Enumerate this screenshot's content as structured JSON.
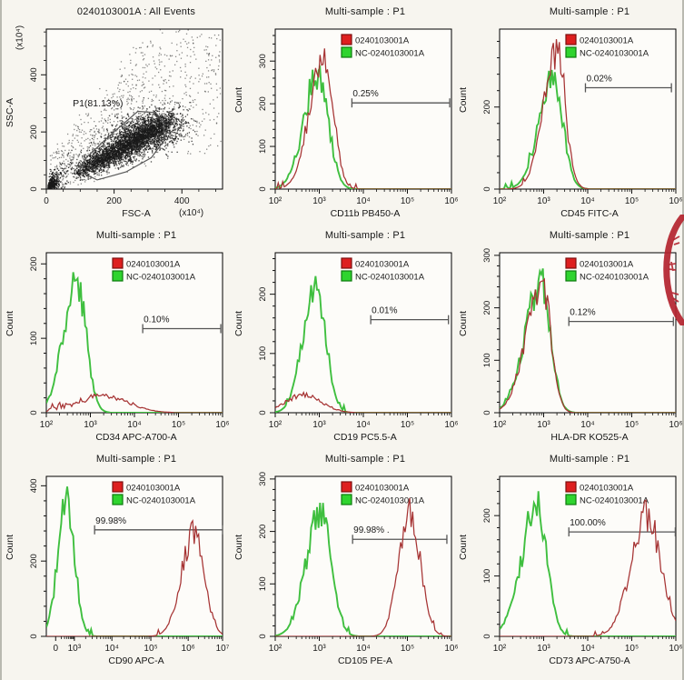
{
  "legend": {
    "sample": "0240103001A",
    "control": "NC-0240103001A",
    "sample_fill": "#de1f1f",
    "sample_border": "#7e0f0f",
    "control_fill": "#2fd42f",
    "control_border": "#0e7a0e"
  },
  "colors": {
    "curve_red": "#a63333",
    "curve_green": "#3fbf3f",
    "marker_line": "#555555",
    "plot_border": "#000000",
    "plot_bg": "#fdfcf9",
    "scatter_dot": "#1a1a1a",
    "gate_line": "#5a5a5a",
    "stamp_red": "#b3232e"
  },
  "stamp": {
    "name": "partial-red-seal",
    "color": "#b3232e"
  },
  "chart_data": [
    {
      "type": "scatter",
      "title": "0240103001A : All Events",
      "xlabel": "FSC-A",
      "ylabel": "SSC-A",
      "axis_multiplier": "(x10⁴)",
      "xlim": [
        0,
        520
      ],
      "ylim": [
        0,
        560
      ],
      "x_ticks": [
        0,
        200,
        400
      ],
      "y_ticks": [
        0,
        200,
        400
      ],
      "minor_step": 50,
      "gate": {
        "label": "P1(81.13%)",
        "percent": 81.13,
        "polygon": [
          [
            100,
            60
          ],
          [
            150,
            32
          ],
          [
            235,
            60
          ],
          [
            310,
            110
          ],
          [
            347,
            170
          ],
          [
            347,
            235
          ],
          [
            322,
            268
          ],
          [
            270,
            272
          ],
          [
            185,
            185
          ],
          [
            118,
            110
          ],
          [
            100,
            78
          ]
        ]
      },
      "cross_marker": [
        285,
        222
      ],
      "clusters": [
        {
          "name": "debris-wedge",
          "n": 520
        },
        {
          "name": "main-population",
          "n": 3200
        },
        {
          "name": "sparse-halo",
          "n": 1000
        }
      ]
    },
    {
      "type": "histogram",
      "title": "Multi-sample : P1",
      "xlabel": "CD11b PB450-A",
      "ylabel": "Count",
      "x_ticks": [
        {
          "label": "10²",
          "f": 0
        },
        {
          "label": "10³",
          "f": 0.25
        },
        {
          "label": "10⁴",
          "f": 0.5
        },
        {
          "label": "10⁵",
          "f": 0.75
        },
        {
          "label": "10⁶",
          "f": 1
        }
      ],
      "ymax": 375,
      "y_ticks": [
        0,
        100,
        200,
        300
      ],
      "marker": {
        "label": "0.25%",
        "x1": 0.435,
        "x2": 0.99,
        "y": 202
      },
      "series": [
        {
          "role": "control",
          "mu": 0.243,
          "sigma": 0.058,
          "sigma_left": 0.08,
          "peak": 272,
          "seed": 21
        },
        {
          "role": "sample",
          "mu": 0.278,
          "sigma": 0.052,
          "sigma_left": 0.08,
          "peak": 318,
          "seed": 22
        }
      ]
    },
    {
      "type": "histogram",
      "title": "Multi-sample : P1",
      "xlabel": "CD45 FITC-A",
      "ylabel": "Count",
      "x_ticks": [
        {
          "label": "10²",
          "f": 0
        },
        {
          "label": "10³",
          "f": 0.25
        },
        {
          "label": "10⁴",
          "f": 0.5
        },
        {
          "label": "10⁵",
          "f": 0.75
        },
        {
          "label": "10⁶",
          "f": 1
        }
      ],
      "ymax": 390,
      "y_ticks": [
        0,
        200
      ],
      "minor_count": 5,
      "marker": {
        "label": "0.02%",
        "x1": 0.487,
        "x2": 0.975,
        "y": 247
      },
      "series": [
        {
          "role": "control",
          "mu": 0.303,
          "sigma": 0.055,
          "sigma_left": 0.08,
          "peak": 275,
          "seed": 31
        },
        {
          "role": "sample",
          "mu": 0.323,
          "sigma": 0.05,
          "sigma_left": 0.075,
          "peak": 330,
          "seed": 32
        }
      ]
    },
    {
      "type": "histogram",
      "title": "Multi-sample : P1",
      "xlabel": "CD34 APC-A700-A",
      "ylabel": "Count",
      "x_ticks": [
        {
          "label": "10²",
          "f": 0
        },
        {
          "label": "10³",
          "f": 0.25
        },
        {
          "label": "10⁴",
          "f": 0.5
        },
        {
          "label": "10⁵",
          "f": 0.75
        },
        {
          "label": "10⁶",
          "f": 1
        }
      ],
      "ymax": 215,
      "y_ticks": [
        0,
        100,
        200
      ],
      "marker": {
        "label": "0.10%",
        "x1": 0.547,
        "x2": 0.99,
        "y": 113
      },
      "series": [
        {
          "role": "control",
          "mu": 0.171,
          "sigma": 0.054,
          "sigma_left": 0.075,
          "peak": 175,
          "seed": 41
        },
        {
          "role": "sample",
          "mu": 0.325,
          "sigma": 0.14,
          "sigma_left": 0.14,
          "peak": 22,
          "floor": {
            "base": 14,
            "range": [
              0.0,
              0.53
            ],
            "jit": 9
          },
          "seed": 42
        }
      ]
    },
    {
      "type": "histogram",
      "title": "Multi-sample : P1",
      "xlabel": "CD19 PC5.5-A",
      "ylabel": "Count",
      "x_ticks": [
        {
          "label": "10²",
          "f": 0
        },
        {
          "label": "10³",
          "f": 0.25
        },
        {
          "label": "10⁴",
          "f": 0.5
        },
        {
          "label": "10⁵",
          "f": 0.75
        },
        {
          "label": "10⁶",
          "f": 1
        }
      ],
      "ymax": 270,
      "y_ticks": [
        0,
        100,
        200
      ],
      "marker": {
        "label": "0.01%",
        "x1": 0.542,
        "x2": 0.983,
        "y": 157
      },
      "series": [
        {
          "role": "control",
          "mu": 0.229,
          "sigma": 0.055,
          "sigma_left": 0.07,
          "peak": 225,
          "seed": 51
        },
        {
          "role": "sample",
          "mu": 0.161,
          "sigma": 0.1,
          "sigma_left": 0.1,
          "peak": 30,
          "floor": {
            "base": 10,
            "range": [
              0.0,
              0.4
            ],
            "jit": 7
          },
          "seed": 52
        }
      ]
    },
    {
      "type": "histogram",
      "title": "Multi-sample : P1",
      "xlabel": "HLA-DR KO525-A",
      "ylabel": "Count",
      "x_ticks": [
        {
          "label": "10²",
          "f": 0
        },
        {
          "label": "10³",
          "f": 0.25
        },
        {
          "label": "10⁴",
          "f": 0.5
        },
        {
          "label": "10⁵",
          "f": 0.75
        },
        {
          "label": "10⁶",
          "f": 1
        }
      ],
      "ymax": 305,
      "y_ticks": [
        0,
        100,
        200,
        300
      ],
      "marker": {
        "label": "0.12%",
        "x1": 0.393,
        "x2": 0.986,
        "y": 174
      },
      "series": [
        {
          "role": "control",
          "mu": 0.233,
          "sigma": 0.055,
          "sigma_left": 0.09,
          "peak": 240,
          "seed": 61
        },
        {
          "role": "sample",
          "mu": 0.241,
          "sigma": 0.05,
          "sigma_left": 0.09,
          "peak": 252,
          "seed": 62
        }
      ]
    },
    {
      "type": "histogram",
      "title": "Multi-sample : P1",
      "xlabel": "CD90 APC-A",
      "ylabel": "Count",
      "x_ticks": [
        {
          "label": "0",
          "f": 0.053
        },
        {
          "label": "10³",
          "f": 0.159
        },
        {
          "label": "10⁴",
          "f": 0.372
        },
        {
          "label": "10⁵",
          "f": 0.593
        },
        {
          "label": "10⁶",
          "f": 0.805
        },
        {
          "label": "10⁷",
          "f": 1
        }
      ],
      "ymax": 425,
      "y_ticks": [
        0,
        200,
        400
      ],
      "minor_count": 5,
      "marker": {
        "label": "99.98%",
        "x1": 0.274,
        "x2": 1.0,
        "y": 283
      },
      "series": [
        {
          "role": "control",
          "mu": 0.115,
          "sigma": 0.045,
          "sigma_left": 0.05,
          "peak": 350,
          "seed": 71
        },
        {
          "role": "sample",
          "mu": 0.835,
          "sigma": 0.06,
          "sigma_left": 0.07,
          "peak": 272,
          "seed": 72
        }
      ]
    },
    {
      "type": "histogram",
      "title": "Multi-sample : P1",
      "xlabel": "CD105 PE-A",
      "ylabel": "Count",
      "x_ticks": [
        {
          "label": "10²",
          "f": 0
        },
        {
          "label": "10³",
          "f": 0.25
        },
        {
          "label": "10⁴",
          "f": 0.5
        },
        {
          "label": "10⁵",
          "f": 0.75
        },
        {
          "label": "10⁶",
          "f": 1
        }
      ],
      "ymax": 305,
      "y_ticks": [
        0,
        100,
        200,
        300
      ],
      "marker": {
        "label": "99.98% .",
        "x1": 0.439,
        "x2": 0.974,
        "y": 185
      },
      "series": [
        {
          "role": "control",
          "mu": 0.256,
          "sigma": 0.06,
          "sigma_left": 0.08,
          "peak": 236,
          "seed": 81
        },
        {
          "role": "sample",
          "mu": 0.761,
          "sigma": 0.06,
          "sigma_left": 0.06,
          "peak": 245,
          "seed": 82
        }
      ]
    },
    {
      "type": "histogram",
      "title": "Multi-sample : P1",
      "xlabel": "CD73 APC-A750-A",
      "ylabel": "Count",
      "x_ticks": [
        {
          "label": "10²",
          "f": 0
        },
        {
          "label": "10³",
          "f": 0.25
        },
        {
          "label": "10⁴",
          "f": 0.5
        },
        {
          "label": "10⁵",
          "f": 0.75
        },
        {
          "label": "10⁶",
          "f": 1
        }
      ],
      "ymax": 265,
      "y_ticks": [
        0,
        100,
        200
      ],
      "marker": {
        "label": "100.00%",
        "x1": 0.393,
        "x2": 0.997,
        "y": 173
      },
      "series": [
        {
          "role": "control",
          "mu": 0.216,
          "sigma": 0.055,
          "sigma_left": 0.09,
          "peak": 218,
          "seed": 91
        },
        {
          "role": "sample",
          "mu": 0.836,
          "sigma": 0.08,
          "sigma_left": 0.09,
          "peak": 198,
          "seed": 92
        }
      ]
    }
  ]
}
